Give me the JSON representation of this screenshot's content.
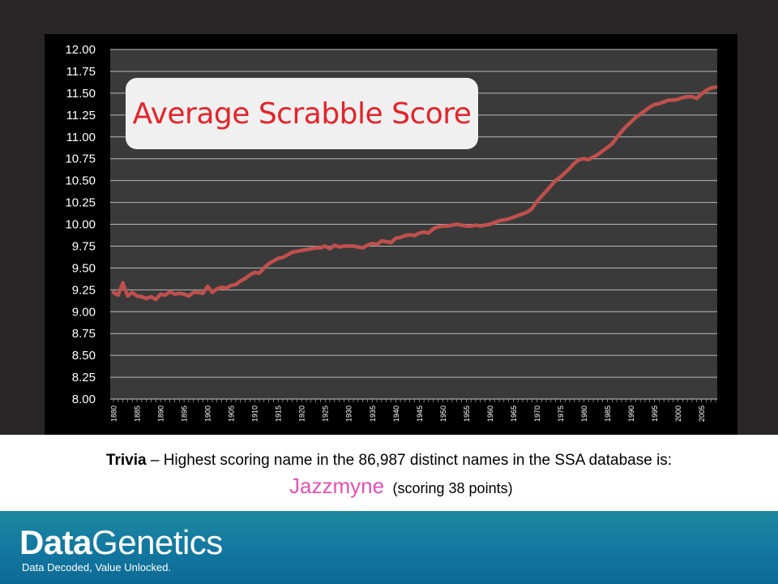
{
  "chart_data": {
    "type": "line",
    "title": "Average Scrabble Score",
    "xlabel": "",
    "ylabel": "",
    "x_range": [
      1880,
      2008
    ],
    "ylim": [
      8.0,
      12.0
    ],
    "yticks": [
      "8.00",
      "8.25",
      "8.50",
      "8.75",
      "9.00",
      "9.25",
      "9.50",
      "9.75",
      "10.00",
      "10.25",
      "10.50",
      "10.75",
      "11.00",
      "11.25",
      "11.50",
      "11.75",
      "12.00"
    ],
    "xticks": [
      "1880",
      "1885",
      "1890",
      "1895",
      "1900",
      "1905",
      "1910",
      "1915",
      "1920",
      "1925",
      "1930",
      "1935",
      "1940",
      "1945",
      "1950",
      "1955",
      "1960",
      "1965",
      "1970",
      "1975",
      "1980",
      "1985",
      "1990",
      "1995",
      "2000",
      "2005"
    ],
    "grid": true,
    "series": [
      {
        "color": "#c0504d",
        "x": [
          1880,
          1881,
          1882,
          1883,
          1884,
          1885,
          1886,
          1887,
          1888,
          1889,
          1890,
          1891,
          1892,
          1893,
          1894,
          1895,
          1896,
          1897,
          1898,
          1899,
          1900,
          1901,
          1902,
          1903,
          1904,
          1905,
          1906,
          1907,
          1908,
          1909,
          1910,
          1911,
          1912,
          1913,
          1914,
          1915,
          1916,
          1917,
          1918,
          1919,
          1920,
          1921,
          1922,
          1923,
          1924,
          1925,
          1926,
          1927,
          1928,
          1929,
          1930,
          1931,
          1932,
          1933,
          1934,
          1935,
          1936,
          1937,
          1938,
          1939,
          1940,
          1941,
          1942,
          1943,
          1944,
          1945,
          1946,
          1947,
          1948,
          1949,
          1950,
          1951,
          1952,
          1953,
          1954,
          1955,
          1956,
          1957,
          1958,
          1959,
          1960,
          1961,
          1962,
          1963,
          1964,
          1965,
          1966,
          1967,
          1968,
          1969,
          1970,
          1971,
          1972,
          1973,
          1974,
          1975,
          1976,
          1977,
          1978,
          1979,
          1980,
          1981,
          1982,
          1983,
          1984,
          1985,
          1986,
          1987,
          1988,
          1989,
          1990,
          1991,
          1992,
          1993,
          1994,
          1995,
          1996,
          1997,
          1998,
          1999,
          2000,
          2001,
          2002,
          2003,
          2004,
          2005,
          2006,
          2007,
          2008
        ],
        "values": [
          9.22,
          9.19,
          9.33,
          9.18,
          9.22,
          9.18,
          9.17,
          9.15,
          9.17,
          9.14,
          9.2,
          9.19,
          9.23,
          9.2,
          9.21,
          9.2,
          9.18,
          9.22,
          9.22,
          9.21,
          9.29,
          9.22,
          9.26,
          9.28,
          9.27,
          9.3,
          9.31,
          9.35,
          9.38,
          9.42,
          9.45,
          9.44,
          9.5,
          9.55,
          9.58,
          9.61,
          9.62,
          9.65,
          9.68,
          9.69,
          9.7,
          9.71,
          9.72,
          9.73,
          9.73,
          9.75,
          9.72,
          9.76,
          9.74,
          9.75,
          9.75,
          9.75,
          9.74,
          9.73,
          9.76,
          9.78,
          9.77,
          9.81,
          9.8,
          9.79,
          9.84,
          9.85,
          9.87,
          9.88,
          9.87,
          9.9,
          9.91,
          9.9,
          9.95,
          9.97,
          9.98,
          9.98,
          9.99,
          10.0,
          9.99,
          9.98,
          9.98,
          9.99,
          9.98,
          9.99,
          10.0,
          10.02,
          10.04,
          10.05,
          10.06,
          10.08,
          10.1,
          10.12,
          10.14,
          10.18,
          10.26,
          10.32,
          10.38,
          10.44,
          10.5,
          10.54,
          10.59,
          10.64,
          10.7,
          10.74,
          10.75,
          10.74,
          10.77,
          10.8,
          10.84,
          10.88,
          10.92,
          10.99,
          11.06,
          11.12,
          11.17,
          11.22,
          11.26,
          11.3,
          11.34,
          11.37,
          11.38,
          11.4,
          11.42,
          11.42,
          11.43,
          11.45,
          11.46,
          11.46,
          11.44,
          11.49,
          11.53,
          11.56,
          11.57
        ]
      }
    ]
  },
  "trivia": {
    "lead": "Trivia",
    "text": " – Highest scoring name in the 86,987 distinct names in the SSA database is:",
    "name": "Jazzmyne",
    "score_note": "(scoring 38 points)"
  },
  "footer": {
    "logo_part1": "Data",
    "logo_part2": "Genetics",
    "tagline": "Data Decoded, Value Unlocked."
  },
  "colors": {
    "page_background": "#2a2627",
    "plot_background": "#3a3a3a",
    "line": "#c0504d",
    "title": "#e3242b",
    "highlight_name": "#e64fb4",
    "footer": "#1277a0"
  }
}
